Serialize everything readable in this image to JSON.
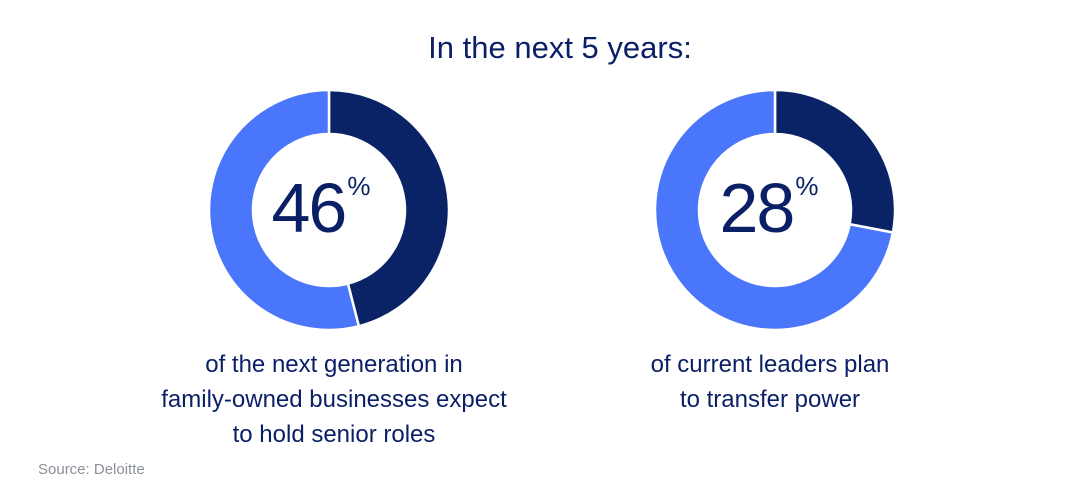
{
  "title": "In the next 5 years:",
  "source": "Source: Deloitte",
  "colors": {
    "dark": "#0a2266",
    "light": "#4a76fb",
    "text": "#0a1f66"
  },
  "chart_data": [
    {
      "type": "pie",
      "value": 46,
      "value_label": "46",
      "unit": "%",
      "caption": [
        "of the next generation in",
        "family-owned businesses expect",
        "to hold senior roles"
      ]
    },
    {
      "type": "pie",
      "value": 28,
      "value_label": "28",
      "unit": "%",
      "caption": [
        "of current leaders plan",
        "to transfer power"
      ]
    }
  ]
}
